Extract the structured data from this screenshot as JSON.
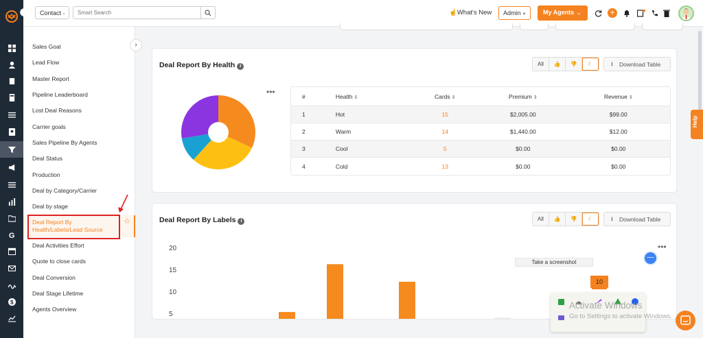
{
  "topbar": {
    "entity_select": "Contact",
    "search_placeholder": "Smart Search",
    "whats_new": "What's New",
    "admin_label": "Admin",
    "my_agents_label": "My Agents"
  },
  "report_list": [
    "Sales Goal",
    "Lead Flow",
    "Master Report",
    "Pipeline Leaderboard",
    "Lost Deal Reasons",
    "Carrier goals",
    "Sales Pipeline By Agents",
    "Deal Status",
    "Production",
    "Deal by Category/Carrier",
    "Deal by stage",
    "Deal Report By Health/Labels/Lead Source",
    "Deal Activities Effort",
    "Quote to close cards",
    "Deal Conversion",
    "Deal Stage Lifetime",
    "Agents Overview"
  ],
  "active_report_lines": [
    "Deal Report By",
    "Health/Labels/Lead Source"
  ],
  "health_card": {
    "title": "Deal Report By Health",
    "filter_all": "All",
    "download_label": "Download Table",
    "headers": [
      "#",
      "Health",
      "Cards",
      "Premium",
      "Revenue"
    ],
    "rows": [
      [
        "1",
        "Hot",
        "15",
        "$2,005.00",
        "$99.00"
      ],
      [
        "2",
        "Warm",
        "14",
        "$1,440.00",
        "$12.00"
      ],
      [
        "3",
        "Cool",
        "5",
        "$0.00",
        "$0.00"
      ],
      [
        "4",
        "Cold",
        "13",
        "$0.00",
        "$0.00"
      ]
    ]
  },
  "labels_card": {
    "title": "Deal Report By Labels",
    "filter_all": "All",
    "download_label": "Download Table",
    "tooltip_value": "10"
  },
  "chart_data": [
    {
      "type": "pie",
      "categories": [
        "Hot",
        "Warm",
        "Cool",
        "Cold"
      ],
      "values": [
        15,
        14,
        5,
        13
      ],
      "colors": [
        "#f58a1f",
        "#fdc012",
        "#19a2d1",
        "#8a35e0"
      ],
      "title": ""
    },
    {
      "type": "bar",
      "yticks": [
        20,
        15,
        10,
        5
      ],
      "ylim": [
        0,
        20
      ],
      "values": [
        5.3,
        16.2,
        12.2
      ],
      "color": "#f58a1f",
      "title": ""
    }
  ],
  "overlays": {
    "screenshot_tooltip": "Take a screenshot",
    "activate_title": "Activate Windows",
    "activate_sub": "Go to Settings to activate Windows.",
    "help": "Help"
  },
  "colors": {
    "accent": "#f58220",
    "rail": "#1f2a37",
    "annotation": "#e02020"
  }
}
